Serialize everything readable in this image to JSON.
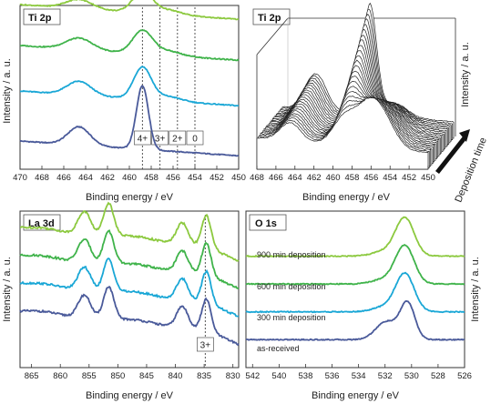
{
  "figure": {
    "ylabel": "Intensity / a. u.",
    "xlabel": "Binding energy / eV"
  },
  "colors": {
    "as_received": "#4a5a9a",
    "300min": "#1aa7d6",
    "600min": "#3fb34a",
    "900min": "#8cc93f",
    "marker_line": "#555555",
    "axes": "#333333"
  },
  "chart_data": [
    {
      "id": "ti2p",
      "type": "line",
      "title": "Ti 2p",
      "xlabel": "Binding energy / eV",
      "ylabel": "Intensity / a. u.",
      "xlim": [
        470,
        450
      ],
      "xticks": [
        470,
        468,
        466,
        464,
        462,
        460,
        458,
        456,
        454,
        452,
        450
      ],
      "markers": [
        {
          "x": 458.8,
          "label": "4+"
        },
        {
          "x": 457.2,
          "label": "3+"
        },
        {
          "x": 455.6,
          "label": "2+"
        },
        {
          "x": 454.0,
          "label": "0"
        }
      ],
      "series": [
        {
          "color_key": "as_received",
          "offset": 0.0,
          "baseline": 0.1,
          "peaks": [
            [
              458.8,
              0.28,
              0.55
            ],
            [
              464.6,
              0.08,
              1.0
            ]
          ]
        },
        {
          "color_key": "300min",
          "offset": 0.22,
          "baseline": 0.1,
          "peaks": [
            [
              458.8,
              0.14,
              0.8
            ],
            [
              464.6,
              0.06,
              1.1
            ],
            [
              456.5,
              0.02,
              1.2
            ]
          ]
        },
        {
          "color_key": "600min",
          "offset": 0.42,
          "baseline": 0.1,
          "peaks": [
            [
              458.8,
              0.1,
              0.9
            ],
            [
              464.6,
              0.05,
              1.2
            ],
            [
              456.5,
              0.02,
              1.2
            ]
          ]
        },
        {
          "color_key": "900min",
          "offset": 0.6,
          "baseline": 0.1,
          "peaks": [
            [
              458.8,
              0.09,
              0.9
            ],
            [
              464.6,
              0.04,
              1.2
            ],
            [
              456.5,
              0.02,
              1.2
            ]
          ]
        }
      ]
    },
    {
      "id": "ti2p_3d",
      "type": "line",
      "title": "Ti 2p",
      "xlabel": "Binding energy / eV",
      "ylabel": "Intensity / a. u.",
      "zlabel": "Deposition time",
      "xlim": [
        468,
        450
      ],
      "xticks": [
        468,
        466,
        464,
        462,
        460,
        458,
        456,
        454,
        452,
        450
      ],
      "n_traces": 22
    },
    {
      "id": "la3d",
      "type": "line",
      "title": "La 3d",
      "xlabel": "Binding energy / eV",
      "ylabel": "Intensity / a. u.",
      "xlim": [
        867,
        829
      ],
      "xticks": [
        865,
        860,
        855,
        850,
        845,
        840,
        835,
        830
      ],
      "markers": [
        {
          "x": 834.8,
          "label": "3+"
        }
      ],
      "series": [
        {
          "color_key": "as_received",
          "offset": 0.0
        },
        {
          "color_key": "300min",
          "offset": 0.17
        },
        {
          "color_key": "600min",
          "offset": 0.34
        },
        {
          "color_key": "900min",
          "offset": 0.51
        }
      ]
    },
    {
      "id": "o1s",
      "type": "line",
      "title": "O 1s",
      "xlabel": "Binding energy / eV",
      "ylabel": "Intensity / a. u.",
      "xlim": [
        542.5,
        526
      ],
      "xticks": [
        542,
        540,
        538,
        536,
        534,
        532,
        530,
        528,
        526
      ],
      "series": [
        {
          "name": "as-received",
          "color_key": "as_received",
          "offset": 0.0
        },
        {
          "name": "300 min deposition",
          "color_key": "300min",
          "offset": 0.17
        },
        {
          "name": "600 min deposition",
          "color_key": "600min",
          "offset": 0.34
        },
        {
          "name": "900 min deposition",
          "color_key": "900min",
          "offset": 0.51
        }
      ]
    }
  ]
}
